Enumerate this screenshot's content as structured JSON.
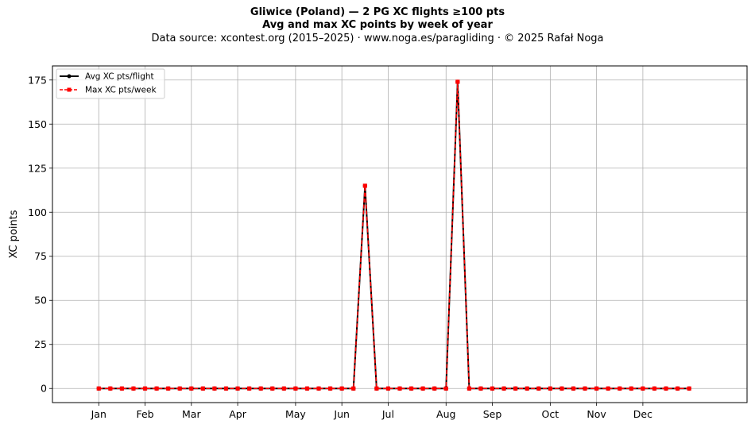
{
  "header": {
    "title": "Gliwice (Poland)  —  2 PG XC flights ≥100 pts",
    "subtitle": "Avg and max XC points by week of year",
    "source": "Data source: xcontest.org (2015–2025)  ·  www.noga.es/paragliding  ·  © 2025 Rafał Noga"
  },
  "chart_data": {
    "type": "line",
    "title": "Gliwice (Poland)  —  2 PG XC flights ≥100 pts",
    "subtitle": "Avg and max XC points by week of year",
    "xlabel": "",
    "ylabel": "XC points",
    "xlim": [
      -3,
      57
    ],
    "ylim": [
      -8,
      183
    ],
    "x_ticks": [
      {
        "week": 1,
        "label": "Jan"
      },
      {
        "week": 5,
        "label": "Feb"
      },
      {
        "week": 9,
        "label": "Mar"
      },
      {
        "week": 13,
        "label": "Apr"
      },
      {
        "week": 18,
        "label": "May"
      },
      {
        "week": 22,
        "label": "Jun"
      },
      {
        "week": 26,
        "label": "Jul"
      },
      {
        "week": 31,
        "label": "Aug"
      },
      {
        "week": 35,
        "label": "Sep"
      },
      {
        "week": 40,
        "label": "Oct"
      },
      {
        "week": 44,
        "label": "Nov"
      },
      {
        "week": 48,
        "label": "Dec"
      }
    ],
    "y_ticks": [
      0,
      25,
      50,
      75,
      100,
      125,
      150,
      175
    ],
    "grid": true,
    "legend_position": "top-left",
    "x": [
      1,
      2,
      3,
      4,
      5,
      6,
      7,
      8,
      9,
      10,
      11,
      12,
      13,
      14,
      15,
      16,
      17,
      18,
      19,
      20,
      21,
      22,
      23,
      24,
      25,
      26,
      27,
      28,
      29,
      30,
      31,
      32,
      33,
      34,
      35,
      36,
      37,
      38,
      39,
      40,
      41,
      42,
      43,
      44,
      45,
      46,
      47,
      48,
      49,
      50,
      51,
      52
    ],
    "series": [
      {
        "name": "Avg XC pts/flight",
        "color": "#000000",
        "style": "solid",
        "marker": "circle",
        "values": [
          0,
          0,
          0,
          0,
          0,
          0,
          0,
          0,
          0,
          0,
          0,
          0,
          0,
          0,
          0,
          0,
          0,
          0,
          0,
          0,
          0,
          0,
          0,
          115,
          0,
          0,
          0,
          0,
          0,
          0,
          0,
          174,
          0,
          0,
          0,
          0,
          0,
          0,
          0,
          0,
          0,
          0,
          0,
          0,
          0,
          0,
          0,
          0,
          0,
          0,
          0,
          0
        ]
      },
      {
        "name": "Max XC pts/week",
        "color": "#ff0000",
        "style": "dashed",
        "marker": "square",
        "values": [
          0,
          0,
          0,
          0,
          0,
          0,
          0,
          0,
          0,
          0,
          0,
          0,
          0,
          0,
          0,
          0,
          0,
          0,
          0,
          0,
          0,
          0,
          0,
          115,
          0,
          0,
          0,
          0,
          0,
          0,
          0,
          174,
          0,
          0,
          0,
          0,
          0,
          0,
          0,
          0,
          0,
          0,
          0,
          0,
          0,
          0,
          0,
          0,
          0,
          0,
          0,
          0
        ]
      }
    ]
  }
}
